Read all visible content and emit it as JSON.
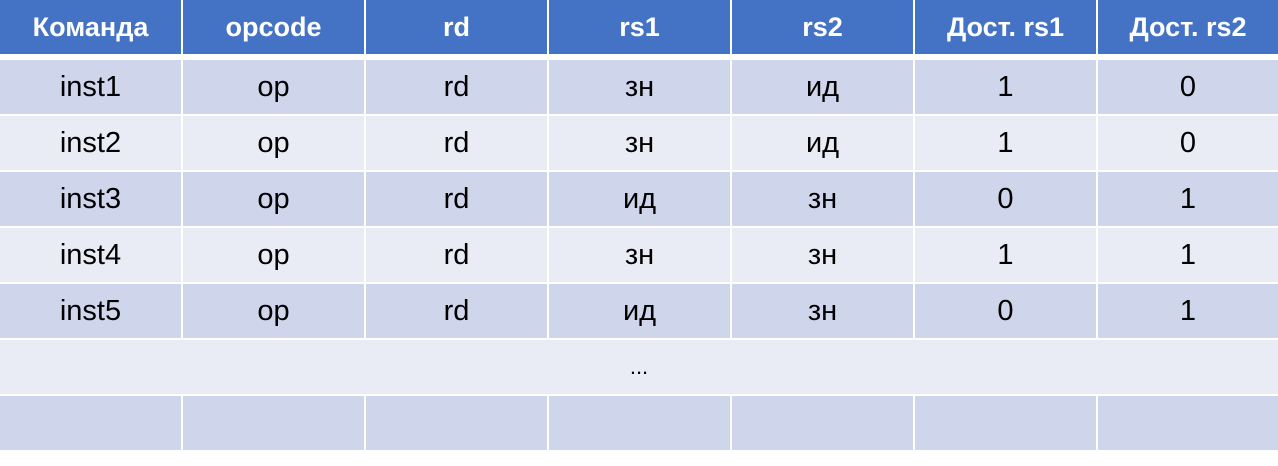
{
  "headers": [
    "Команда",
    "opcode",
    "rd",
    "rs1",
    "rs2",
    "Дост. rs1",
    "Дост. rs2"
  ],
  "rows": [
    [
      "inst1",
      "op",
      "rd",
      "зн",
      "ид",
      "1",
      "0"
    ],
    [
      "inst2",
      "op",
      "rd",
      "зн",
      "ид",
      "1",
      "0"
    ],
    [
      "inst3",
      "op",
      "rd",
      "ид",
      "зн",
      "0",
      "1"
    ],
    [
      "inst4",
      "op",
      "rd",
      "зн",
      "зн",
      "1",
      "1"
    ],
    [
      "inst5",
      "op",
      "rd",
      "ид",
      "зн",
      "0",
      "1"
    ]
  ],
  "ellipsis_row": "...",
  "colors": {
    "header": "#4472C4",
    "row_dark": "#CFD5EA",
    "row_light": "#E9EBF5"
  }
}
